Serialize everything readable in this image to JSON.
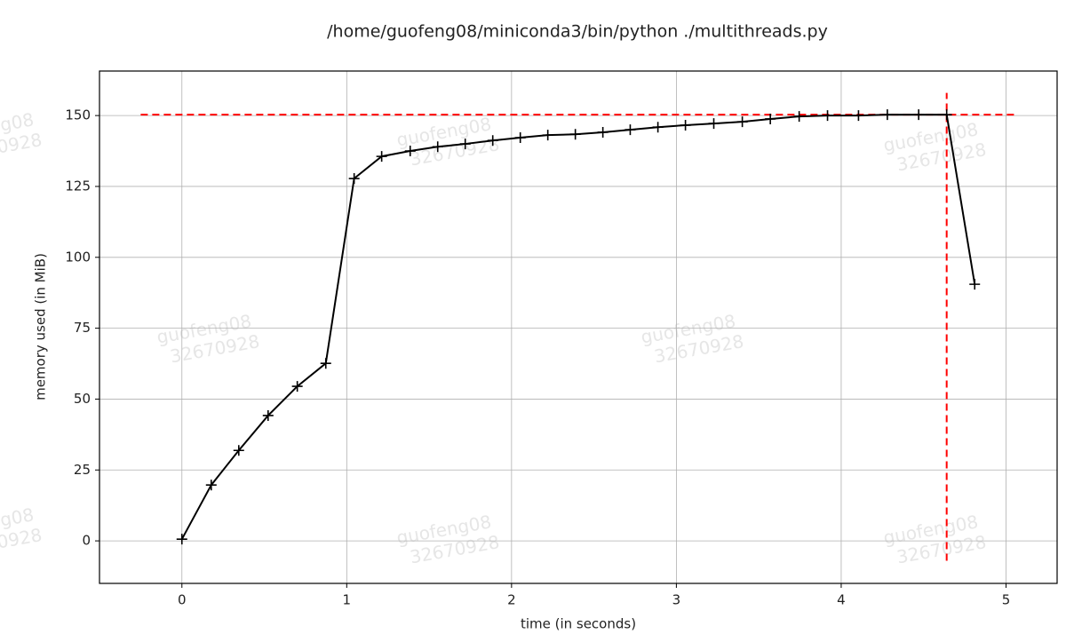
{
  "chart_data": {
    "type": "line",
    "title": "/home/guofeng08/miniconda3/bin/python ./multithreads.py",
    "xlabel": "time (in seconds)",
    "ylabel": "memory used (in MiB)",
    "x": [
      0,
      0.178,
      0.345,
      0.523,
      0.7,
      0.873,
      1.045,
      1.212,
      1.385,
      1.552,
      1.719,
      1.886,
      2.053,
      2.22,
      2.387,
      2.554,
      2.72,
      2.888,
      3.055,
      3.227,
      3.4,
      3.57,
      3.745,
      3.917,
      4.105,
      4.28,
      4.47,
      4.64,
      4.81
    ],
    "values": [
      0.6,
      19.7,
      31.9,
      44.2,
      54.5,
      62.6,
      127.8,
      135.6,
      137.5,
      139.0,
      140.0,
      141.2,
      142.2,
      143.1,
      143.4,
      144.1,
      145.0,
      145.9,
      146.6,
      147.2,
      147.8,
      148.8,
      149.7,
      150.0,
      150.0,
      150.3,
      150.3,
      150.3,
      90.5
    ],
    "color": "#000000",
    "marker": "+",
    "max_line": {
      "y": 150.3,
      "xmin": -0.25,
      "xmax": 5.05,
      "x": 4.64,
      "ymin": -7,
      "ymax": 158,
      "color": "#ff0000"
    },
    "xlim": [
      -0.5,
      5.31
    ],
    "ylim": [
      -15,
      165.7
    ],
    "xticks": [
      0,
      1,
      2,
      3,
      4,
      5
    ],
    "yticks": [
      0,
      25,
      50,
      75,
      100,
      125,
      150
    ],
    "grid": true,
    "watermark": [
      "guofeng08",
      "32670928"
    ]
  }
}
